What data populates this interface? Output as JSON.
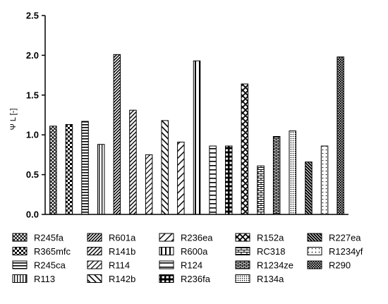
{
  "chart_data": {
    "type": "bar",
    "title": "",
    "xlabel": "",
    "ylabel": "Ψ L [-]",
    "ylim": [
      0,
      2.5
    ],
    "yticks": [
      "0.0",
      "0.5",
      "1.0",
      "1.5",
      "2.0",
      "2.5"
    ],
    "grid": false,
    "legend_position": "bottom",
    "categories": [
      "R245fa",
      "R365mfc",
      "R245ca",
      "R113",
      "R601a",
      "R141b",
      "R114",
      "R142b",
      "R236ea",
      "R600a",
      "R124",
      "R236fa",
      "R152a",
      "RC318",
      "R1234ze",
      "R134a",
      "R227ea",
      "R1234yf",
      "R290"
    ],
    "values": [
      1.11,
      1.13,
      1.17,
      0.88,
      2.01,
      1.31,
      0.75,
      1.18,
      0.91,
      1.93,
      0.86,
      0.86,
      1.64,
      0.61,
      0.98,
      1.05,
      0.66,
      0.86,
      1.98
    ],
    "patterns": [
      "crosshatch",
      "checker",
      "hstripe",
      "vstripe",
      "diag-dense",
      "diag-medium",
      "diag-sparse",
      "diag-back",
      "diag-wide",
      "vstripe-bold",
      "hstripe-wide",
      "brick-grid",
      "lattice",
      "brick",
      "brick-small",
      "dots-fine",
      "diag-dark",
      "dots-sparse",
      "crosshatch-dense"
    ]
  }
}
